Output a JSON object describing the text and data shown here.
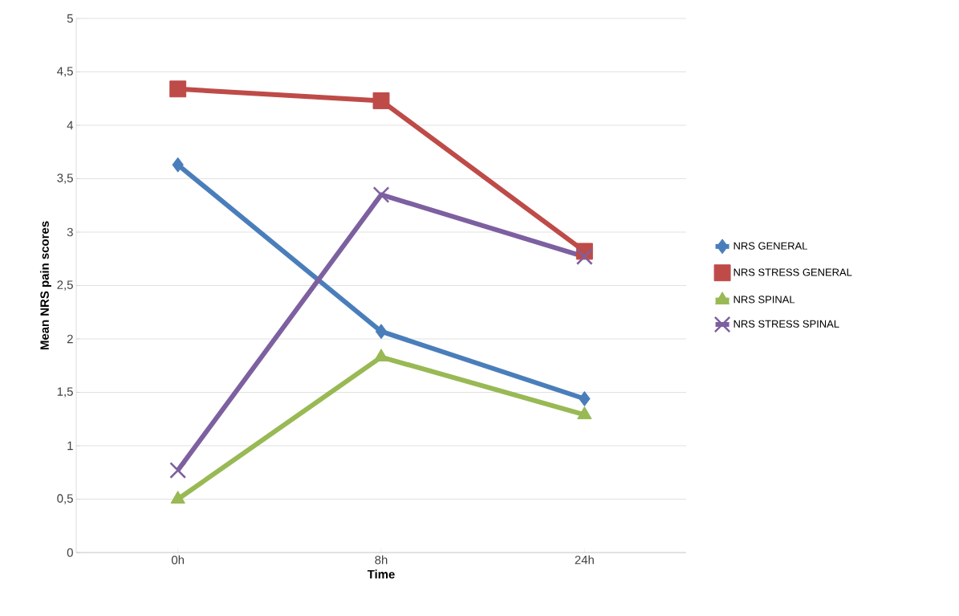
{
  "chart_data": {
    "type": "line",
    "xlabel": "Time",
    "ylabel": "Mean NRS  pain scores",
    "categories": [
      "0h",
      "8h",
      "24h"
    ],
    "series": [
      {
        "name": "NRS GENERAL",
        "color": "#4a7ebb",
        "marker": "diamond",
        "values": [
          3.63,
          2.07,
          1.44
        ]
      },
      {
        "name": "NRS STRESS GENERAL",
        "color": "#be4b48",
        "marker": "square",
        "values": [
          4.34,
          4.23,
          2.82
        ]
      },
      {
        "name": "NRS SPINAL",
        "color": "#98b954",
        "marker": "triangle",
        "values": [
          0.5,
          1.83,
          1.29
        ]
      },
      {
        "name": "NRS STRESS SPINAL",
        "color": "#7d60a0",
        "marker": "cross",
        "values": [
          0.77,
          3.35,
          2.77
        ]
      }
    ],
    "ylim": [
      0,
      5
    ],
    "yticks": [
      0,
      {
        "value": 0.5,
        "label": "0,5"
      },
      1,
      {
        "value": 1.5,
        "label": "1,5"
      },
      2,
      {
        "value": 2.5,
        "label": "2,5"
      },
      3,
      {
        "value": 3.5,
        "label": "3,5"
      },
      4,
      {
        "value": 4.5,
        "label": "4,5"
      },
      5
    ],
    "grid": "y",
    "legend": "right",
    "line_style": "solid"
  }
}
